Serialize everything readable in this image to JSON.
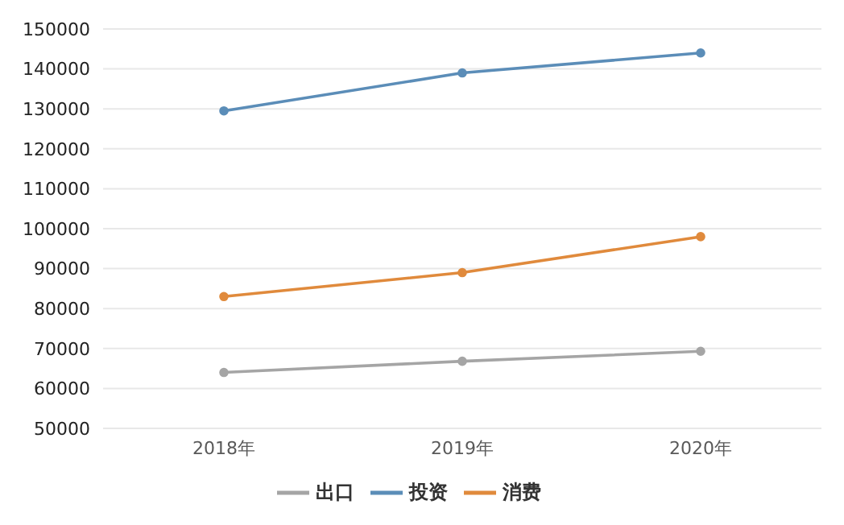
{
  "chart_data": {
    "type": "line",
    "categories": [
      "2018年",
      "2019年",
      "2020年"
    ],
    "series": [
      {
        "name": "投资",
        "color": "#5b8db8",
        "values": [
          129500,
          139000,
          144000
        ]
      },
      {
        "name": "消费",
        "color": "#e08a3c",
        "values": [
          83000,
          89000,
          98000
        ]
      },
      {
        "name": "出口",
        "color": "#a5a5a5",
        "values": [
          64000,
          66800,
          69300
        ]
      }
    ],
    "ylim": [
      50000,
      150000
    ],
    "yticks": [
      50000,
      60000,
      70000,
      80000,
      90000,
      100000,
      110000,
      120000,
      130000,
      140000,
      150000
    ],
    "grid": "y",
    "legend": "bottom",
    "marker": "circle",
    "line_style": "solid"
  }
}
